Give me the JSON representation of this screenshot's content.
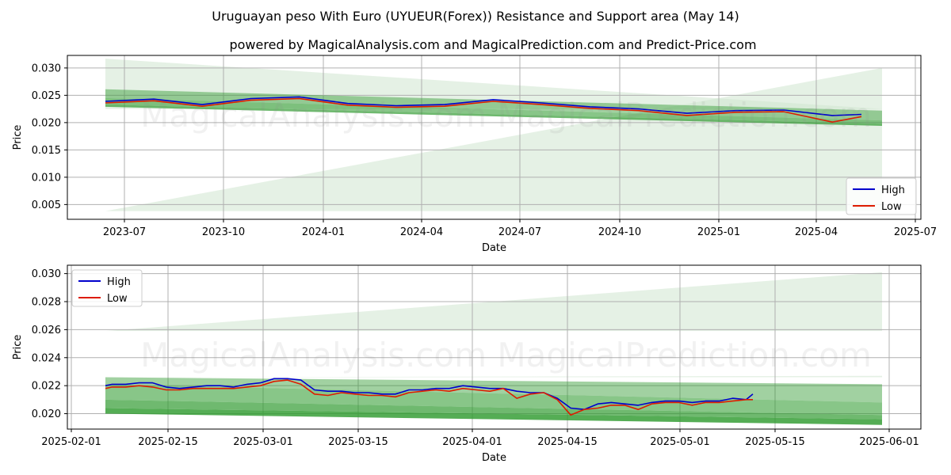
{
  "title": "Uruguayan peso With Euro (UYUEUR(Forex)) Resistance and Support area (May 14)",
  "subtitle": "powered by MagicalAnalysis.com and MagicalPrediction.com and Predict-Price.com",
  "watermark": "MagicalAnalysis.com    MagicalPrediction.com",
  "colors": {
    "high": "#0000cc",
    "low": "#dd1c00",
    "band_dark": "#2e9a2e",
    "band_light": "#cfe6cf",
    "grid": "#b0b0b0"
  },
  "chart_data": [
    {
      "type": "line",
      "name": "overview",
      "xlabel": "Date",
      "ylabel": "Price",
      "x_ticks": [
        "2023-07",
        "2023-10",
        "2024-01",
        "2024-04",
        "2024-07",
        "2024-10",
        "2025-01",
        "2025-04",
        "2025-07"
      ],
      "y_ticks": [
        "0.005",
        "0.010",
        "0.015",
        "0.020",
        "0.025",
        "0.030"
      ],
      "ylim": [
        0.0023,
        0.0323
      ],
      "legend": {
        "position": "lower-right",
        "entries": [
          "High",
          "Low"
        ]
      },
      "series": [
        {
          "name": "High",
          "x": [
            0,
            0.5,
            1,
            1.5,
            2,
            2.5,
            3,
            3.5,
            4,
            4.5,
            5,
            5.5,
            6,
            6.5,
            7,
            7.5,
            7.8
          ],
          "values": [
            0.0239,
            0.0243,
            0.0233,
            0.0244,
            0.0247,
            0.0235,
            0.0231,
            0.0233,
            0.0242,
            0.0236,
            0.0229,
            0.0225,
            0.0217,
            0.0222,
            0.0223,
            0.0213,
            0.0215
          ]
        },
        {
          "name": "Low",
          "x": [
            0,
            0.5,
            1,
            1.5,
            2,
            2.5,
            3,
            3.5,
            4,
            4.5,
            5,
            5.5,
            6,
            6.5,
            7,
            7.5,
            7.8
          ],
          "values": [
            0.0236,
            0.024,
            0.023,
            0.0241,
            0.0244,
            0.0232,
            0.0228,
            0.023,
            0.0239,
            0.0233,
            0.0226,
            0.0222,
            0.0213,
            0.0219,
            0.022,
            0.0201,
            0.0211
          ]
        }
      ],
      "bands": {
        "x": [
          0,
          7.8
        ],
        "dark": [
          [
            0.0261,
            0.0222
          ],
          [
            0.0245,
            0.0204
          ],
          [
            0.0233,
            0.0198
          ]
        ],
        "light": [
          [
            0.0038,
            0.03
          ],
          [
            0.0317,
            0.0225
          ]
        ]
      }
    },
    {
      "type": "line",
      "name": "detail",
      "xlabel": "Date",
      "ylabel": "Price",
      "x_ticks": [
        "2025-02-01",
        "2025-02-15",
        "2025-03-01",
        "2025-03-15",
        "2025-04-01",
        "2025-04-15",
        "2025-05-01",
        "2025-05-15",
        "2025-06-01"
      ],
      "y_ticks": [
        "0.020",
        "0.022",
        "0.024",
        "0.026",
        "0.028",
        "0.030"
      ],
      "ylim": [
        0.0189,
        0.0306
      ],
      "legend": {
        "position": "upper-left",
        "entries": [
          "High",
          "Low"
        ]
      },
      "series": [
        {
          "name": "High",
          "x": [
            4,
            5,
            7,
            9,
            11,
            13,
            15,
            17,
            19,
            21,
            23,
            25,
            27,
            29,
            31,
            33,
            35,
            37,
            39,
            41,
            43,
            45,
            47,
            49,
            51,
            53,
            55,
            57,
            59,
            61,
            63,
            65,
            67,
            69,
            71,
            73,
            75,
            77,
            79,
            81,
            83,
            85,
            87,
            89,
            91,
            93,
            95,
            97,
            99,
            100
          ],
          "values": [
            0.022,
            0.0221,
            0.0221,
            0.0222,
            0.0222,
            0.0219,
            0.0218,
            0.0219,
            0.022,
            0.022,
            0.0219,
            0.0221,
            0.0222,
            0.0225,
            0.0225,
            0.0224,
            0.0217,
            0.0216,
            0.0216,
            0.0215,
            0.0215,
            0.0214,
            0.0214,
            0.0217,
            0.0217,
            0.0218,
            0.0218,
            0.022,
            0.0219,
            0.0218,
            0.0218,
            0.0216,
            0.0215,
            0.0215,
            0.0211,
            0.0204,
            0.0203,
            0.0207,
            0.0208,
            0.0207,
            0.0206,
            0.0208,
            0.0209,
            0.0209,
            0.0208,
            0.0209,
            0.0209,
            0.0211,
            0.021,
            0.0214
          ]
        },
        {
          "name": "Low",
          "x": [
            4,
            5,
            7,
            9,
            11,
            13,
            15,
            17,
            19,
            21,
            23,
            25,
            27,
            29,
            31,
            33,
            35,
            37,
            39,
            41,
            43,
            45,
            47,
            49,
            51,
            53,
            55,
            57,
            59,
            61,
            63,
            65,
            67,
            69,
            71,
            73,
            75,
            77,
            79,
            81,
            83,
            85,
            87,
            89,
            91,
            93,
            95,
            97,
            99,
            100
          ],
          "values": [
            0.0218,
            0.0219,
            0.0219,
            0.022,
            0.0219,
            0.0217,
            0.0217,
            0.0218,
            0.0218,
            0.0218,
            0.0218,
            0.0219,
            0.022,
            0.0223,
            0.0224,
            0.0221,
            0.0214,
            0.0213,
            0.0215,
            0.0214,
            0.0213,
            0.0213,
            0.0212,
            0.0215,
            0.0216,
            0.0217,
            0.0216,
            0.0218,
            0.0217,
            0.0216,
            0.0218,
            0.0211,
            0.0214,
            0.0215,
            0.021,
            0.0199,
            0.0203,
            0.0204,
            0.0206,
            0.0206,
            0.0203,
            0.0207,
            0.0208,
            0.0208,
            0.0206,
            0.0208,
            0.0208,
            0.0209,
            0.021,
            0.021
          ]
        }
      ],
      "bands": {
        "x": [
          4,
          120
        ],
        "dark": [
          [
            0.0226,
            0.0221
          ],
          [
            0.0221,
            0.0208
          ],
          [
            0.021,
            0.0199
          ],
          [
            0.0204,
            0.0196
          ]
        ],
        "light": [
          [
            0.0259,
            0.0301
          ],
          [
            0.0226,
            0.0227
          ]
        ]
      }
    }
  ]
}
